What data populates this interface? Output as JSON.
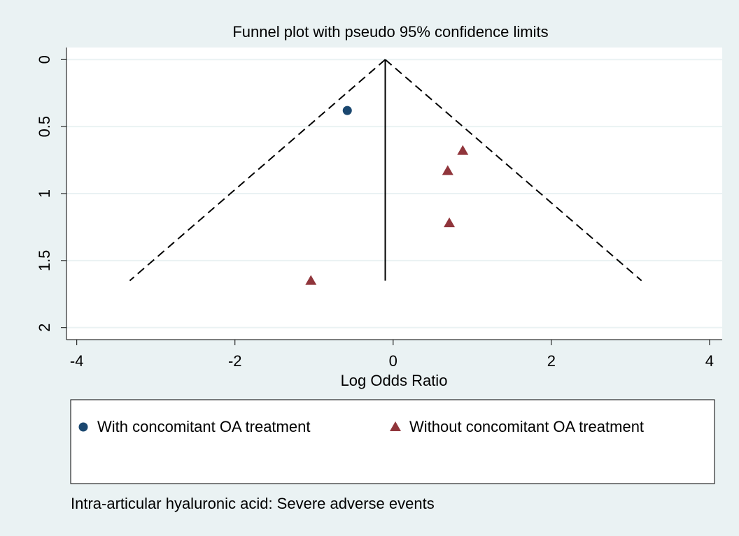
{
  "chart_data": {
    "type": "scatter",
    "title": "Funnel plot with pseudo 95% confidence limits",
    "xlabel": "Log Odds Ratio",
    "caption": "Intra-articular hyaluronic acid: Severe adverse events",
    "xlim": [
      -4.13,
      4.16
    ],
    "ylim": [
      2.09,
      -0.09
    ],
    "xticks": [
      -4,
      -2,
      0,
      2,
      4
    ],
    "yticks": [
      0,
      0.5,
      1,
      1.5,
      2
    ],
    "grid": true,
    "funnel": {
      "apex": [
        -0.1,
        0
      ],
      "left": [
        -3.33,
        1.65
      ],
      "right": [
        3.14,
        1.65
      ]
    },
    "series": [
      {
        "name": "With concomitant OA treatment",
        "color": "#1a476f",
        "marker": "circle",
        "x": [
          -0.58
        ],
        "values": [
          0.38
        ]
      },
      {
        "name": "Without concomitant OA treatment",
        "color": "#90353b",
        "marker": "triangle",
        "x": [
          0.88,
          0.69,
          0.71,
          -1.04
        ],
        "values": [
          0.68,
          0.83,
          1.22,
          1.65
        ]
      }
    ]
  }
}
